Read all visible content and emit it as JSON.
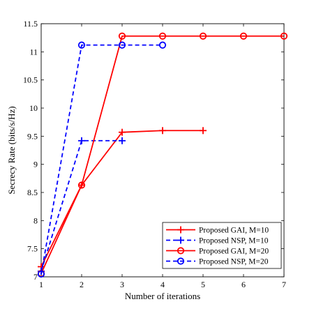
{
  "chart_data": {
    "type": "line",
    "title": "",
    "xlabel": "Number of iterations",
    "ylabel": "Secrecy Rate (bits/s/Hz)",
    "xlim": [
      1,
      7
    ],
    "ylim": [
      7,
      11.5
    ],
    "xticks": [
      "1",
      "2",
      "3",
      "4",
      "5",
      "6",
      "7"
    ],
    "yticks": [
      "7",
      "7.5",
      "8",
      "8.5",
      "9",
      "9.5",
      "10",
      "10.5",
      "11",
      "11.5"
    ],
    "grid": false,
    "legend_position": "bottom-right",
    "series": [
      {
        "name": "Proposed GAI, M=10",
        "color": "#ff0000",
        "line_style": "solid",
        "marker": "plus",
        "x": [
          1,
          2,
          3,
          4,
          5
        ],
        "y": [
          7.18,
          8.63,
          9.57,
          9.6,
          9.6
        ]
      },
      {
        "name": "Proposed NSP, M=10",
        "color": "#0000ff",
        "line_style": "dashed",
        "marker": "plus",
        "x": [
          1,
          2,
          3
        ],
        "y": [
          7.1,
          9.42,
          9.42
        ]
      },
      {
        "name": "Proposed GAI, M=20",
        "color": "#ff0000",
        "line_style": "solid",
        "marker": "circle",
        "x": [
          1,
          2,
          3,
          4,
          5,
          6,
          7
        ],
        "y": [
          7.06,
          8.63,
          11.28,
          11.28,
          11.28,
          11.28,
          11.28
        ]
      },
      {
        "name": "Proposed NSP, M=20",
        "color": "#0000ff",
        "line_style": "dashed",
        "marker": "circle",
        "x": [
          1,
          2,
          3,
          4
        ],
        "y": [
          7.05,
          11.12,
          11.12,
          11.12
        ]
      }
    ]
  }
}
